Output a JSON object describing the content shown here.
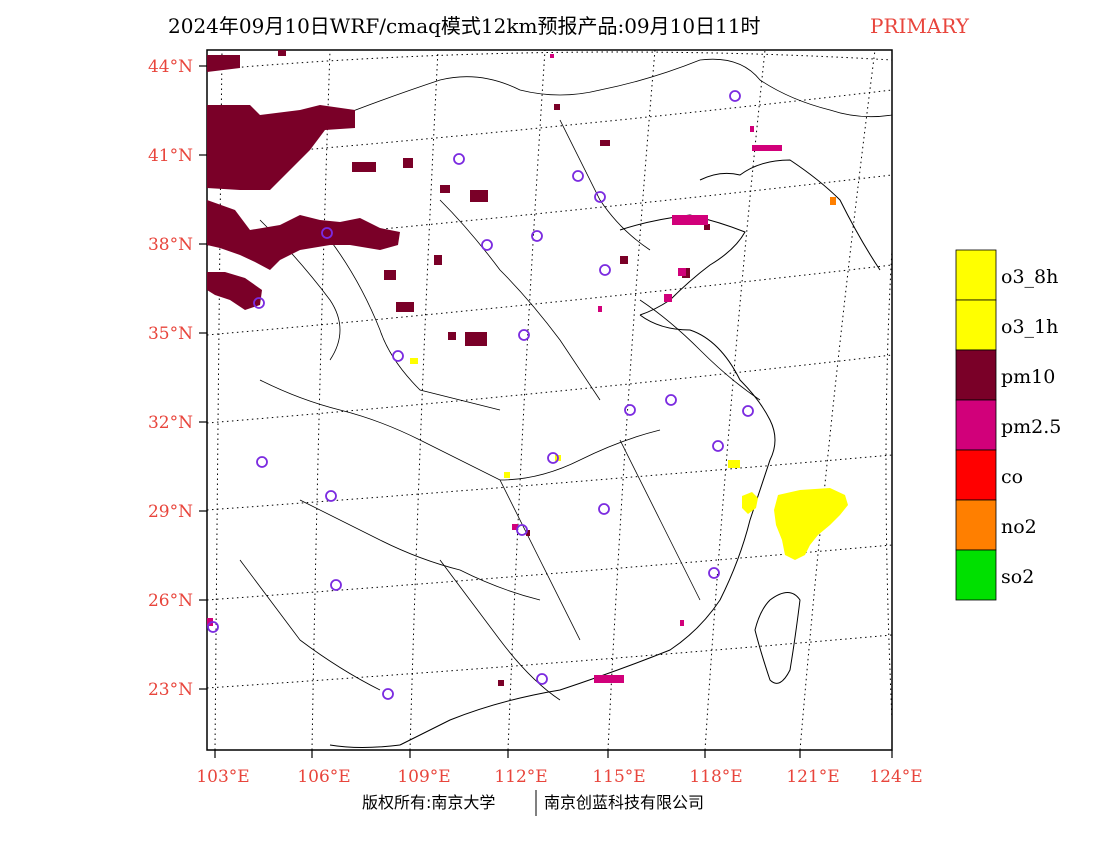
{
  "header": {
    "title": "2024年09月10日WRF/cmaq模式12km预报产品:09月10日11时",
    "flag": "PRIMARY"
  },
  "colors": {
    "axis_label": "#e8453c",
    "flag": "#e8453c",
    "station": "#7b2be0",
    "pm10": "#7a0028",
    "pm25": "#d1007a",
    "o3": "#ffff00",
    "no2": "#ff7f00",
    "co": "#ff0000",
    "so2": "#00e000"
  },
  "map": {
    "lat_labels": [
      "44°N",
      "41°N",
      "38°N",
      "35°N",
      "32°N",
      "29°N",
      "26°N",
      "23°N"
    ],
    "lon_labels": [
      "103°E",
      "106°E",
      "109°E",
      "112°E",
      "115°E",
      "118°E",
      "121°E",
      "124°E"
    ]
  },
  "legend": {
    "items": [
      {
        "label": "o3_8h",
        "color": "#ffff00"
      },
      {
        "label": "o3_1h",
        "color": "#ffff00"
      },
      {
        "label": "pm10",
        "color": "#7a0028"
      },
      {
        "label": "pm2.5",
        "color": "#d1007a"
      },
      {
        "label": "co",
        "color": "#ff0000"
      },
      {
        "label": "no2",
        "color": "#ff7f00"
      },
      {
        "label": "so2",
        "color": "#00e000"
      }
    ]
  },
  "footer": {
    "left": "版权所有:南京大学",
    "right": "南京创蓝科技有限公司"
  }
}
